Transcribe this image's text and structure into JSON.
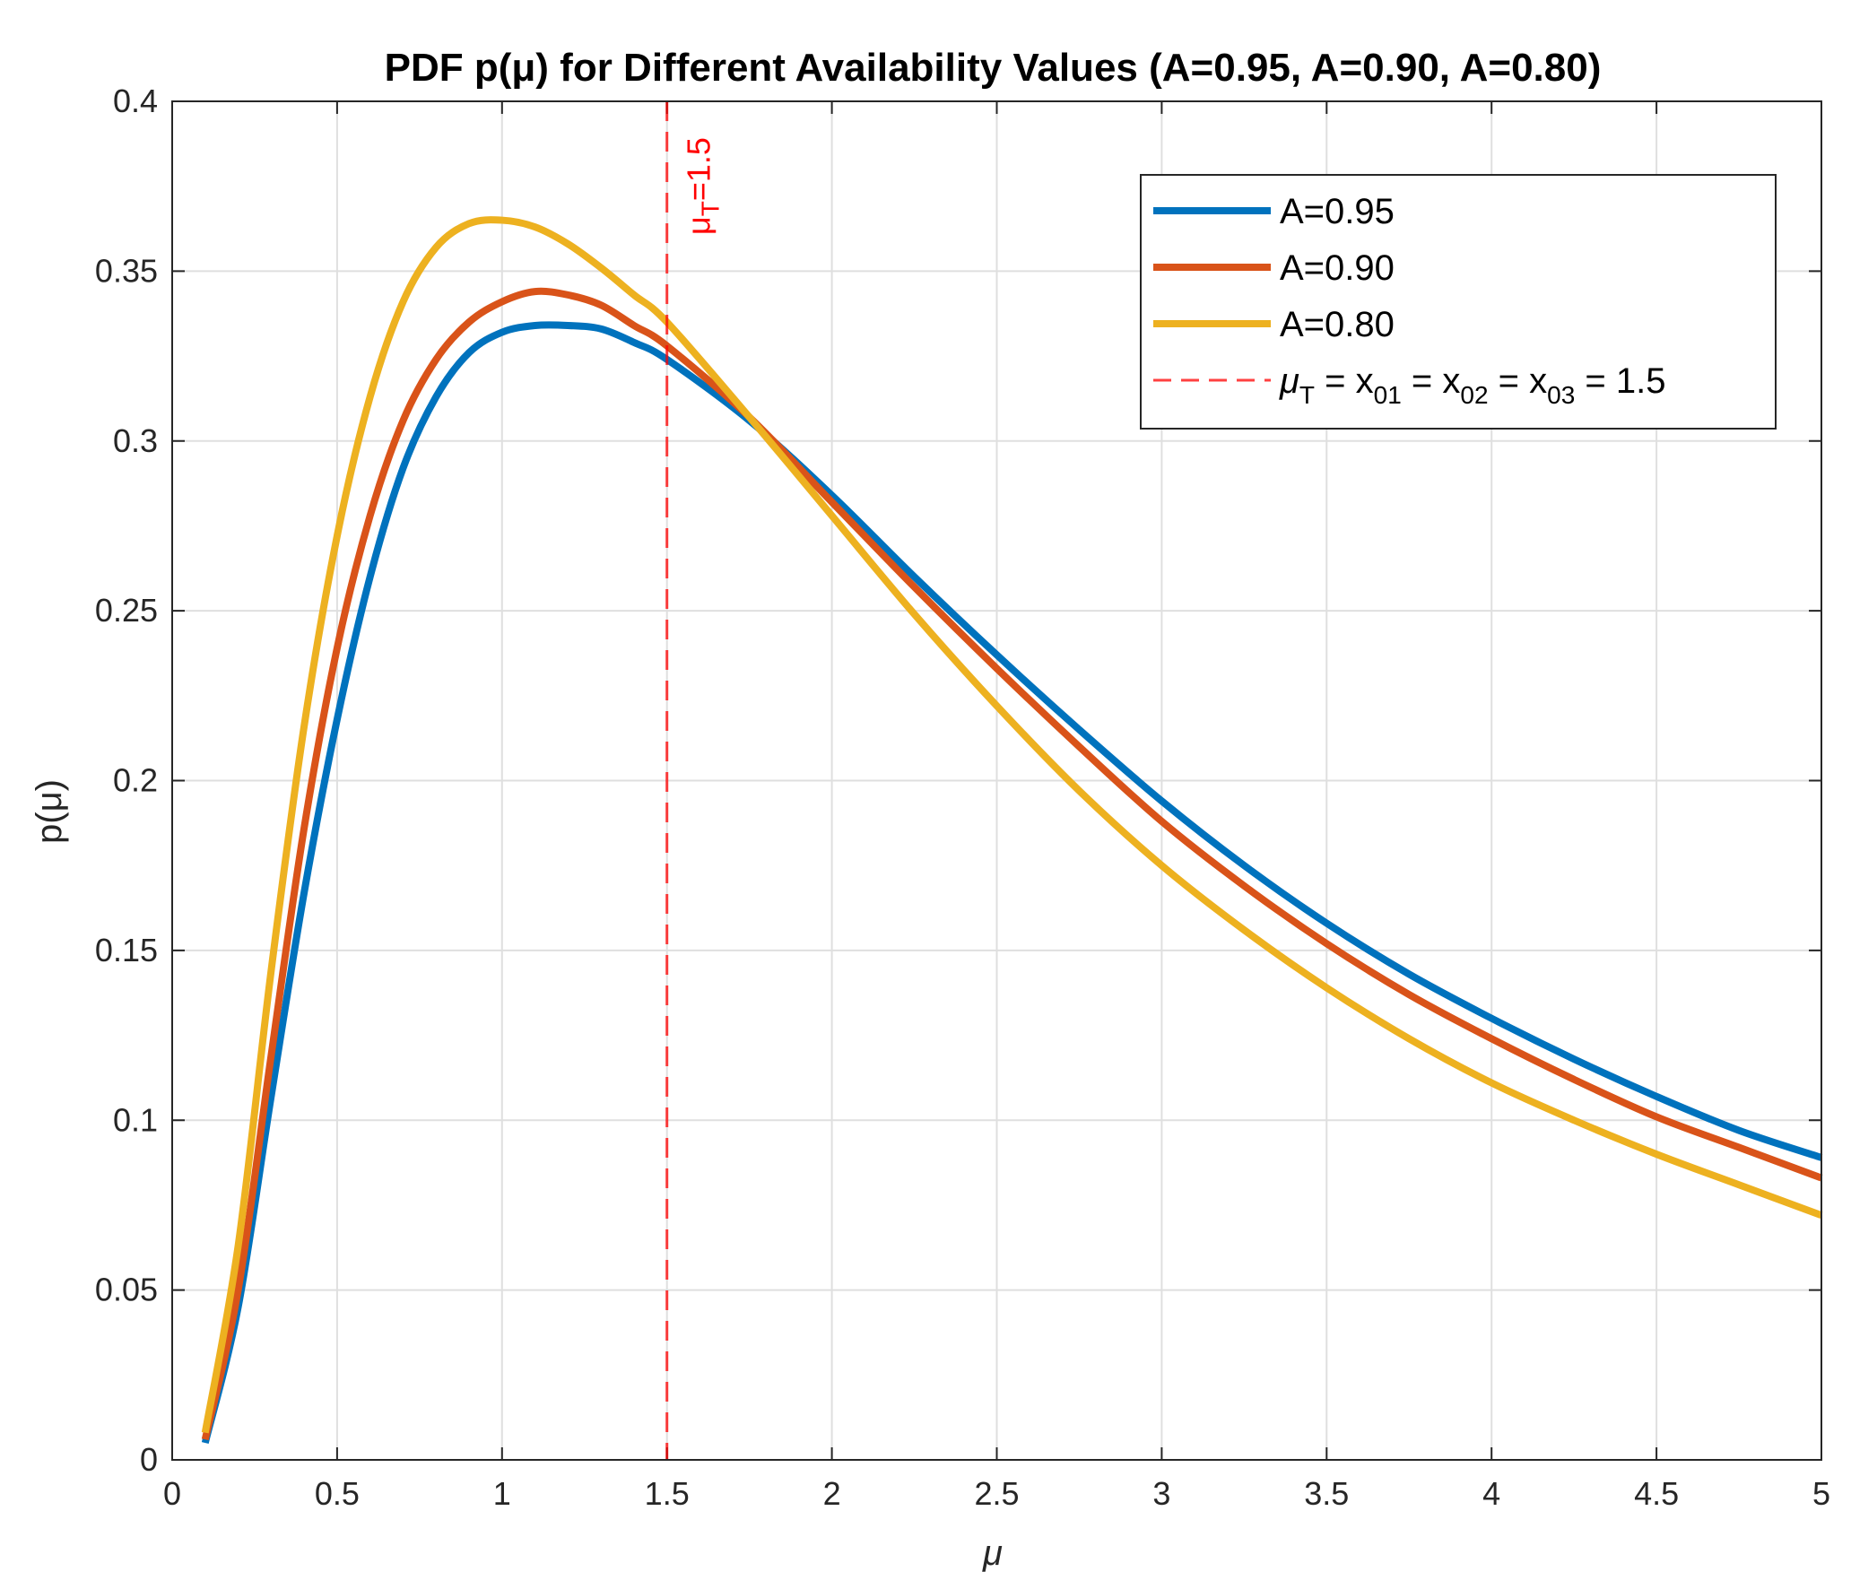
{
  "chart_data": {
    "type": "line",
    "title": "PDF p(μ) for Different Availability Values (A=0.95, A=0.90, A=0.80)",
    "xlabel": "μ",
    "ylabel": "p(μ)",
    "xlim": [
      0,
      5
    ],
    "ylim": [
      0,
      0.4
    ],
    "grid": true,
    "legend_location": "top-right",
    "x_ticks": [
      0,
      0.5,
      1,
      1.5,
      2,
      2.5,
      3,
      3.5,
      4,
      4.5,
      5
    ],
    "x_tick_labels": [
      "0",
      "0.5",
      "1",
      "1.5",
      "2",
      "2.5",
      "3",
      "3.5",
      "4",
      "4.5",
      "5"
    ],
    "y_ticks": [
      0,
      0.05,
      0.1,
      0.15,
      0.2,
      0.25,
      0.3,
      0.35,
      0.4
    ],
    "y_tick_labels": [
      "0",
      "0.05",
      "0.1",
      "0.15",
      "0.2",
      "0.25",
      "0.3",
      "0.35",
      "0.4"
    ],
    "series": [
      {
        "name": "A=0.95",
        "color": "#0072BD",
        "x": [
          0.1,
          0.2,
          0.3,
          0.4,
          0.5,
          0.6,
          0.7,
          0.8,
          0.9,
          1.0,
          1.1,
          1.2,
          1.3,
          1.4,
          1.5,
          1.75,
          2.0,
          2.25,
          2.5,
          2.75,
          3.0,
          3.25,
          3.5,
          3.75,
          4.0,
          4.25,
          4.5,
          4.75,
          5.0
        ],
        "y": [
          0.005,
          0.045,
          0.107,
          0.167,
          0.218,
          0.26,
          0.292,
          0.313,
          0.326,
          0.332,
          0.334,
          0.334,
          0.333,
          0.329,
          0.324,
          0.306,
          0.284,
          0.26,
          0.237,
          0.215,
          0.194,
          0.175,
          0.158,
          0.143,
          0.13,
          0.118,
          0.107,
          0.097,
          0.089
        ]
      },
      {
        "name": "A=0.90",
        "color": "#D95319",
        "x": [
          0.1,
          0.2,
          0.3,
          0.4,
          0.5,
          0.6,
          0.7,
          0.8,
          0.9,
          1.0,
          1.1,
          1.2,
          1.3,
          1.4,
          1.5,
          1.75,
          2.0,
          2.25,
          2.5,
          2.75,
          3.0,
          3.25,
          3.5,
          3.75,
          4.0,
          4.25,
          4.5,
          4.75,
          5.0
        ],
        "y": [
          0.006,
          0.05,
          0.119,
          0.186,
          0.239,
          0.278,
          0.306,
          0.324,
          0.335,
          0.341,
          0.344,
          0.343,
          0.34,
          0.334,
          0.328,
          0.307,
          0.282,
          0.257,
          0.233,
          0.21,
          0.188,
          0.169,
          0.152,
          0.137,
          0.124,
          0.112,
          0.101,
          0.092,
          0.083
        ]
      },
      {
        "name": "A=0.80",
        "color": "#EDB120",
        "x": [
          0.1,
          0.2,
          0.3,
          0.4,
          0.5,
          0.6,
          0.7,
          0.8,
          0.9,
          1.0,
          1.1,
          1.2,
          1.3,
          1.4,
          1.5,
          1.75,
          2.0,
          2.25,
          2.5,
          2.75,
          3.0,
          3.25,
          3.5,
          3.75,
          4.0,
          4.25,
          4.5,
          4.75,
          5.0
        ],
        "y": [
          0.008,
          0.063,
          0.144,
          0.216,
          0.272,
          0.313,
          0.341,
          0.357,
          0.364,
          0.365,
          0.363,
          0.358,
          0.351,
          0.343,
          0.335,
          0.307,
          0.278,
          0.249,
          0.222,
          0.197,
          0.175,
          0.156,
          0.139,
          0.124,
          0.111,
          0.1,
          0.09,
          0.081,
          0.072
        ]
      }
    ],
    "reference_line": {
      "x": 1.5,
      "color": "#FF0000",
      "style": "dashed",
      "annotation_base": "μ",
      "annotation_sub": "T",
      "annotation_rest": "=1.5"
    },
    "legend": {
      "entries": [
        {
          "label": "A=0.95",
          "color": "#0072BD",
          "style": "solid"
        },
        {
          "label": "A=0.90",
          "color": "#D95319",
          "style": "solid"
        },
        {
          "label": "A=0.80",
          "color": "#EDB120",
          "style": "solid"
        }
      ],
      "ref_entry": {
        "color": "#FF0000",
        "style": "dashed",
        "mu": "μ",
        "sub_T": "T",
        "eq1": " = x",
        "sub_01": "01",
        "eq2": " = x",
        "sub_02": "02",
        "eq3": " = x",
        "sub_03": "03",
        "tail": " = 1.5"
      }
    }
  }
}
